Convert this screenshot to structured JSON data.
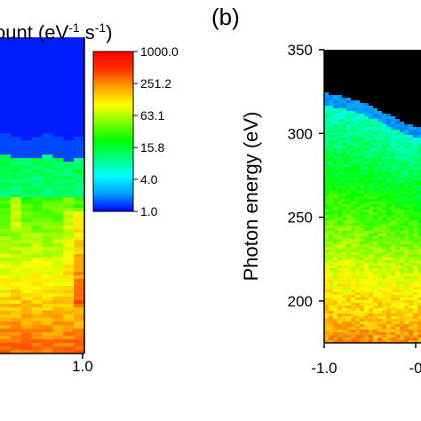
{
  "chart_data": [
    {
      "type": "heatmap",
      "panel_label": "",
      "title": "ount (eV⁻¹ s⁻¹)",
      "xlabel": "",
      "ylabel": "",
      "x_ticks": [
        "1.0"
      ],
      "x_tick_values": [
        1.0
      ],
      "xlim": [
        0.0,
        1.0
      ],
      "columns": 8,
      "column_profiles": [
        {
          "x": 0.05,
          "top_band_end": 0.6,
          "cyan_end": 0.66,
          "yellow_start": 0.8
        },
        {
          "x": 0.17,
          "top_band_end": 0.62,
          "cyan_end": 0.7,
          "yellow_start": 0.86
        },
        {
          "x": 0.29,
          "top_band_end": 0.63,
          "cyan_end": 0.72,
          "yellow_start": 0.9
        },
        {
          "x": 0.41,
          "top_band_end": 0.62,
          "cyan_end": 0.69,
          "yellow_start": 0.84
        },
        {
          "x": 0.53,
          "top_band_end": 0.6,
          "cyan_end": 0.67,
          "yellow_start": 0.82
        },
        {
          "x": 0.65,
          "top_band_end": 0.62,
          "cyan_end": 0.69,
          "yellow_start": 0.8
        },
        {
          "x": 0.77,
          "top_band_end": 0.64,
          "cyan_end": 0.73,
          "yellow_start": 0.86
        },
        {
          "x": 0.89,
          "top_band_end": 0.62,
          "cyan_end": 0.71,
          "yellow_start": 0.93
        }
      ]
    },
    {
      "type": "heatmap",
      "panel_label": "(b)",
      "title": "",
      "xlabel": "",
      "ylabel": "Photon energy (eV)",
      "x_ticks": [
        "-1.0",
        "-0"
      ],
      "x_tick_values": [
        -1.0,
        0.0
      ],
      "xlim": [
        -1.0,
        0.0
      ],
      "y_ticks": [
        "350",
        "300",
        "250",
        "200"
      ],
      "y_tick_values": [
        350,
        300,
        250,
        200
      ],
      "ylim": [
        175,
        350
      ],
      "cutoff_edge": [
        {
          "x": -1.0,
          "energy": 325
        },
        {
          "x": -0.75,
          "energy": 322
        },
        {
          "x": -0.5,
          "energy": 317
        },
        {
          "x": -0.25,
          "energy": 310
        },
        {
          "x": -0.1,
          "energy": 306
        },
        {
          "x": 0.0,
          "energy": 305
        }
      ],
      "note": "black region above cutoff (no data)"
    }
  ],
  "colorbar": {
    "scale": "log",
    "min": 1.0,
    "max": 1000.0,
    "tick_labels": [
      "1000.0",
      "251.2",
      "63.1",
      "15.8",
      "4.0",
      "1.0"
    ],
    "tick_values": [
      1000.0,
      251.2,
      63.1,
      15.8,
      4.0,
      1.0
    ],
    "colors": [
      "#0000ff",
      "#00a0ff",
      "#00ffff",
      "#00ff80",
      "#00ff00",
      "#80ff00",
      "#ffff00",
      "#ffa000",
      "#ff3000",
      "#ff0000"
    ]
  }
}
